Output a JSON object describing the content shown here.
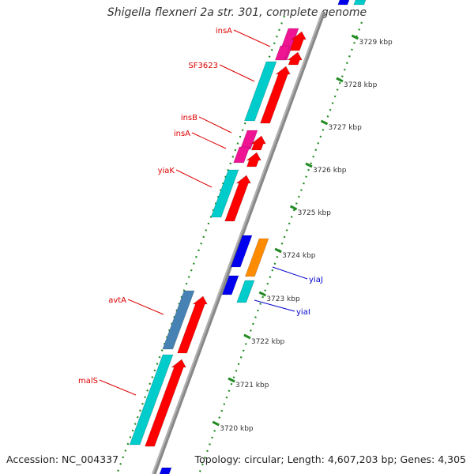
{
  "title": "Shigella flexneri 2a str. 301, complete genome",
  "footer": {
    "accession": "Accession: NC_004337",
    "summary": "Topology: circular; Length: 4,607,203 bp; Genes: 4,305"
  },
  "ticks": [
    {
      "label": "3729 kbp",
      "kbp": 3729
    },
    {
      "label": "3728 kbp",
      "kbp": 3728
    },
    {
      "label": "3727 kbp",
      "kbp": 3727
    },
    {
      "label": "3726 kbp",
      "kbp": 3726
    },
    {
      "label": "3725 kbp",
      "kbp": 3725
    },
    {
      "label": "3724 kbp",
      "kbp": 3724
    },
    {
      "label": "3723 kbp",
      "kbp": 3723
    },
    {
      "label": "3722 kbp",
      "kbp": 3722
    },
    {
      "label": "3721 kbp",
      "kbp": 3721
    },
    {
      "label": "3720 kbp",
      "kbp": 3720
    }
  ],
  "gene_labels": [
    {
      "name": "insA",
      "color": "#dd0000"
    },
    {
      "name": "SF3623",
      "color": "#dd0000"
    },
    {
      "name": "insB",
      "color": "#dd0000"
    },
    {
      "name": "insA",
      "color": "#dd0000"
    },
    {
      "name": "yiaK",
      "color": "#dd0000"
    },
    {
      "name": "yiaJ",
      "color": "#0000cc"
    },
    {
      "name": "yiaI",
      "color": "#0000cc"
    },
    {
      "name": "avtA",
      "color": "#dd0000"
    },
    {
      "name": "malS",
      "color": "#dd0000"
    }
  ],
  "colors": {
    "cds": "#ff0000",
    "gene_outer": "#00cccc",
    "insertion": "#ee1493",
    "reverse_cds": "#0000ee",
    "orange_cds": "#ff8c00",
    "steelblue_cds": "#4682b4",
    "backbone": "#888888",
    "tick_dots": "#228b22"
  }
}
